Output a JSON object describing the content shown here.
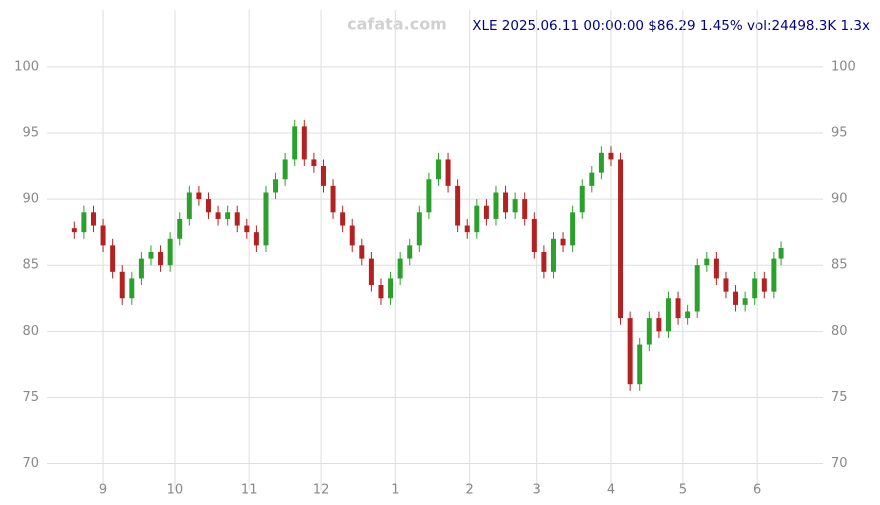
{
  "chart_data": {
    "type": "candlestick",
    "title": "XLE 2025.06.11 00:00:00 $86.29 1.45% vol:24498.3K 1.3x",
    "watermark": "cafata.com",
    "up_color": "#2ca02c",
    "down_color": "#b22222",
    "grid": true,
    "xlim": [
      -23.4,
      300.5
    ],
    "xticks": [
      {
        "value": 0,
        "label": "9"
      },
      {
        "value": 30,
        "label": "10"
      },
      {
        "value": 61,
        "label": "11"
      },
      {
        "value": 91,
        "label": "12"
      },
      {
        "value": 122,
        "label": "1"
      },
      {
        "value": 153,
        "label": "2"
      },
      {
        "value": 181,
        "label": "3"
      },
      {
        "value": 212,
        "label": "4"
      },
      {
        "value": 242,
        "label": "5"
      },
      {
        "value": 273,
        "label": "6"
      }
    ],
    "ylim": [
      68,
      104.3
    ],
    "yticks": [
      70,
      75,
      80,
      85,
      90,
      95,
      100
    ],
    "x": [
      -12,
      -8,
      -4,
      0,
      4,
      8,
      12,
      16,
      20,
      24,
      28,
      32,
      36,
      40,
      44,
      48,
      52,
      56,
      60,
      64,
      68,
      72,
      76,
      80,
      84,
      88,
      92,
      96,
      100,
      104,
      108,
      112,
      116,
      120,
      124,
      128,
      132,
      136,
      140,
      144,
      148,
      152,
      156,
      160,
      164,
      168,
      172,
      176,
      180,
      184,
      188,
      192,
      196,
      200,
      204,
      208,
      212,
      216,
      220,
      224,
      228,
      232,
      236,
      240,
      244,
      248,
      252,
      256,
      260,
      264,
      268,
      272,
      276,
      280,
      283
    ],
    "open": [
      87.8,
      87.5,
      89,
      88,
      86.5,
      84.5,
      82.5,
      84,
      85.5,
      86,
      85,
      87,
      88.5,
      90.5,
      90,
      89,
      88.5,
      89,
      88,
      87.5,
      86.5,
      90.5,
      91.5,
      93,
      95.5,
      93,
      92.5,
      91,
      89,
      88,
      86.5,
      85.5,
      83.5,
      82.5,
      84,
      85.5,
      86.5,
      89,
      91.5,
      93,
      91,
      88,
      87.5,
      89.5,
      88.5,
      90.5,
      89,
      90,
      88.5,
      86,
      84.5,
      87,
      86.5,
      89,
      91,
      92,
      93.5,
      93,
      81,
      76,
      79,
      81,
      80,
      82.5,
      81,
      81.5,
      85,
      85.5,
      84,
      83,
      82,
      82.5,
      84,
      83,
      85.5
    ],
    "high": [
      88.3,
      89.5,
      89.5,
      88.5,
      87,
      85,
      84.5,
      86,
      86.5,
      86.5,
      87.5,
      89,
      91,
      91,
      90.5,
      89.5,
      89.5,
      89.5,
      88.5,
      88,
      91,
      92,
      93.5,
      96,
      96,
      93.5,
      93,
      91.5,
      89.5,
      88.5,
      87,
      86,
      84,
      84.5,
      86,
      87,
      89.5,
      92,
      93.5,
      93.5,
      91.5,
      88.5,
      90,
      90,
      91,
      91,
      90.5,
      90.5,
      89,
      86.5,
      87.5,
      87.5,
      89.5,
      91.5,
      92.5,
      94,
      94,
      93.5,
      81.5,
      79.5,
      81.5,
      81.5,
      83,
      83,
      82,
      85.5,
      86,
      86,
      84.5,
      83.5,
      83,
      84.5,
      84.5,
      86,
      86.8
    ],
    "low": [
      87,
      87,
      87.5,
      86,
      84,
      82,
      82,
      83.5,
      85,
      84.5,
      84.5,
      86.5,
      88,
      89.5,
      88.5,
      88,
      88,
      87.5,
      87,
      86,
      86,
      90,
      91,
      92.5,
      92.5,
      92,
      90.5,
      88.5,
      87.5,
      86,
      85,
      83,
      82,
      82,
      83.5,
      85,
      86,
      88.5,
      91,
      90.5,
      87.5,
      87,
      87,
      88,
      88,
      88.5,
      88.5,
      88,
      85.5,
      84,
      84,
      86,
      86,
      88.5,
      90.5,
      91.5,
      92.5,
      80.5,
      75.5,
      75.5,
      78.5,
      79.5,
      79.5,
      80.5,
      80.5,
      81,
      84.5,
      83.5,
      82.5,
      81.5,
      81.5,
      82,
      82.5,
      82.5,
      85
    ],
    "close": [
      87.5,
      89,
      88,
      86.5,
      84.5,
      82.5,
      84,
      85.5,
      86,
      85,
      87,
      88.5,
      90.5,
      90,
      89,
      88.5,
      89,
      88,
      87.5,
      86.5,
      90.5,
      91.5,
      93,
      95.5,
      93,
      92.5,
      91,
      89,
      88,
      86.5,
      85.5,
      83.5,
      82.5,
      84,
      85.5,
      86.5,
      89,
      91.5,
      93,
      91,
      88,
      87.5,
      89.5,
      88.5,
      90.5,
      89,
      90,
      88.5,
      86,
      84.5,
      87,
      86.5,
      89,
      91,
      92,
      93.5,
      93,
      81,
      76,
      79,
      81,
      80,
      82.5,
      81,
      81.5,
      85,
      85.5,
      84,
      83,
      82,
      82.5,
      84,
      83,
      85.5,
      86.3
    ]
  }
}
